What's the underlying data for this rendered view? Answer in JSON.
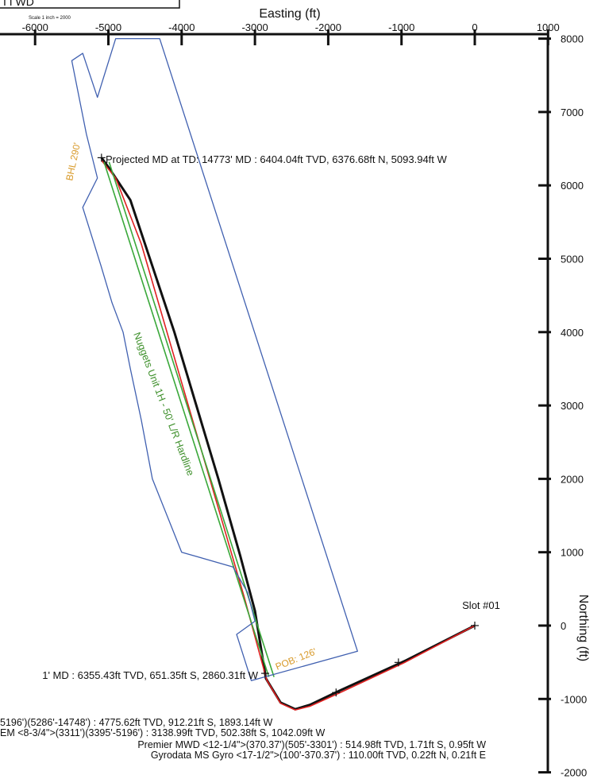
{
  "header": {
    "fragment_label": "I I WD",
    "scale_note": "Scale 1 inch = 2000"
  },
  "chart_data": {
    "type": "line",
    "title": "",
    "xlabel": "Easting (ft)",
    "ylabel": "Northing (ft)",
    "xlim": [
      -6500,
      1000
    ],
    "ylim": [
      -2000,
      8000
    ],
    "x_ticks": [
      -6000,
      -5000,
      -4000,
      -3000,
      -2000,
      -1000,
      0,
      1000
    ],
    "x_tick_labels": [
      "-6000",
      "-5000",
      "-4000",
      "-3000",
      "-2000",
      "-1000",
      "0",
      "1000"
    ],
    "y_ticks": [
      8000,
      7000,
      6000,
      5000,
      4000,
      3000,
      2000,
      1000,
      0,
      -1000,
      -2000
    ],
    "y_tick_labels": [
      "8000",
      "7000",
      "6000",
      "5000",
      "4000",
      "3000",
      "2000",
      "1000",
      "0",
      "-1000",
      "-2000"
    ],
    "series": [
      {
        "kind": "survey-black",
        "color": "#111111",
        "x": [
          0,
          -950,
          -1850,
          -2250,
          -2450,
          -2650,
          -2850,
          -3000,
          -3200,
          -3500,
          -3800,
          -4100,
          -4400,
          -4700,
          -5000,
          -5094
        ],
        "y": [
          0,
          -480,
          -890,
          -1080,
          -1140,
          -1050,
          -720,
          200,
          950,
          2000,
          3000,
          4000,
          4900,
          5800,
          6250,
          6377
        ]
      },
      {
        "kind": "plan-red",
        "color": "#e02020",
        "x": [
          0,
          -950,
          -1850,
          -2250,
          -2450,
          -2650,
          -2840,
          -3150,
          -3500,
          -3850,
          -4200,
          -4550,
          -4900,
          -5094
        ],
        "y": [
          0,
          -500,
          -920,
          -1100,
          -1150,
          -1060,
          -740,
          400,
          1600,
          2800,
          4000,
          5200,
          6100,
          6340
        ]
      },
      {
        "kind": "hardline-green-a",
        "color": "#3aa83a",
        "x": [
          -2810,
          -5060
        ],
        "y": [
          -700,
          6320
        ]
      },
      {
        "kind": "hardline-green-b",
        "color": "#3aa83a",
        "x": [
          -2740,
          -4990
        ],
        "y": [
          -700,
          6320
        ]
      },
      {
        "kind": "lease-boundary",
        "color": "#4060b0",
        "x": [
          -4300,
          -1600,
          -3050,
          -3250,
          -3000,
          -3100,
          -3300,
          -4000,
          -4400,
          -4550,
          -4700,
          -4800,
          -4950,
          -5100,
          -5350,
          -5150,
          -5300,
          -5500,
          -5350,
          -5150,
          -4900
        ],
        "y": [
          8000,
          -350,
          -750,
          -120,
          60,
          450,
          800,
          1000,
          2000,
          2800,
          3500,
          4000,
          4400,
          4900,
          5700,
          6100,
          6700,
          7700,
          7800,
          7200,
          8000
        ]
      }
    ],
    "markers": [
      {
        "x": -5094,
        "y": 6377,
        "label": "Projected MD at TD: 14773' MD : 6404.04ft TVD, 6376.68ft N, 5093.94ft W"
      },
      {
        "x": -2860,
        "y": -651,
        "label": "1' MD : 6355.43ft TVD, 651.35ft S, 2860.31ft W"
      },
      {
        "x": 0,
        "y": 0,
        "label": "Slot #01"
      },
      {
        "x": -1042,
        "y": -502,
        "label": ""
      },
      {
        "x": -1893,
        "y": -912,
        "label": ""
      }
    ],
    "annotations": {
      "bhl": "BHL 290'",
      "pob": "POB: 126'",
      "hardline": "Nuggets Unit 1H - 50' L/R Hardline",
      "survey_lines": [
        "5196')(5286'-14748') : 4775.62ft TVD, 912.21ft S, 1893.14ft W",
        "EM <8-3/4\">(3311')(3395'-5196') : 3138.99ft TVD, 502.38ft S, 1042.09ft W",
        "Premier MWD <12-1/4\">(370.37')(505'-3301') : 514.98ft TVD, 1.71ft S, 0.95ft W",
        "Gyrodata MS Gyro <17-1/2\">(100'-370.37') : 110.00ft TVD, 0.22ft N, 0.21ft E"
      ]
    },
    "grid": false,
    "legend": "none"
  }
}
